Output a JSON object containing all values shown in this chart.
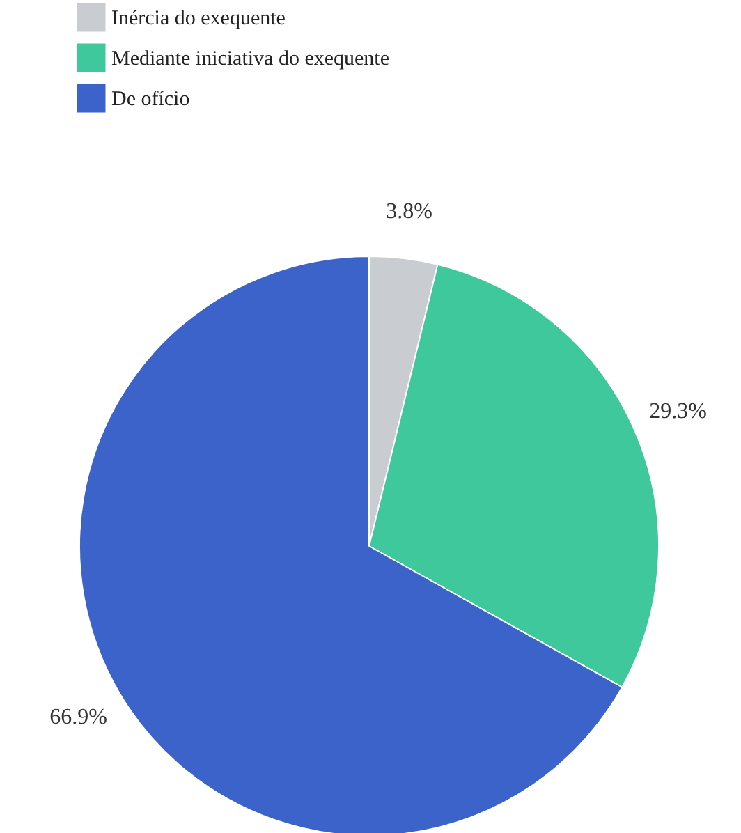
{
  "chart_data": {
    "type": "pie",
    "categories": [
      "Inércia do exequente",
      "Mediante iniciativa do exequente",
      "De ofício"
    ],
    "values": [
      3.8,
      29.3,
      66.9
    ],
    "colors": [
      "#c9cdd1",
      "#3ec89b",
      "#3b63c9"
    ],
    "value_labels": [
      "3.8%",
      "29.3%",
      "66.9%"
    ],
    "legend": "top left"
  }
}
